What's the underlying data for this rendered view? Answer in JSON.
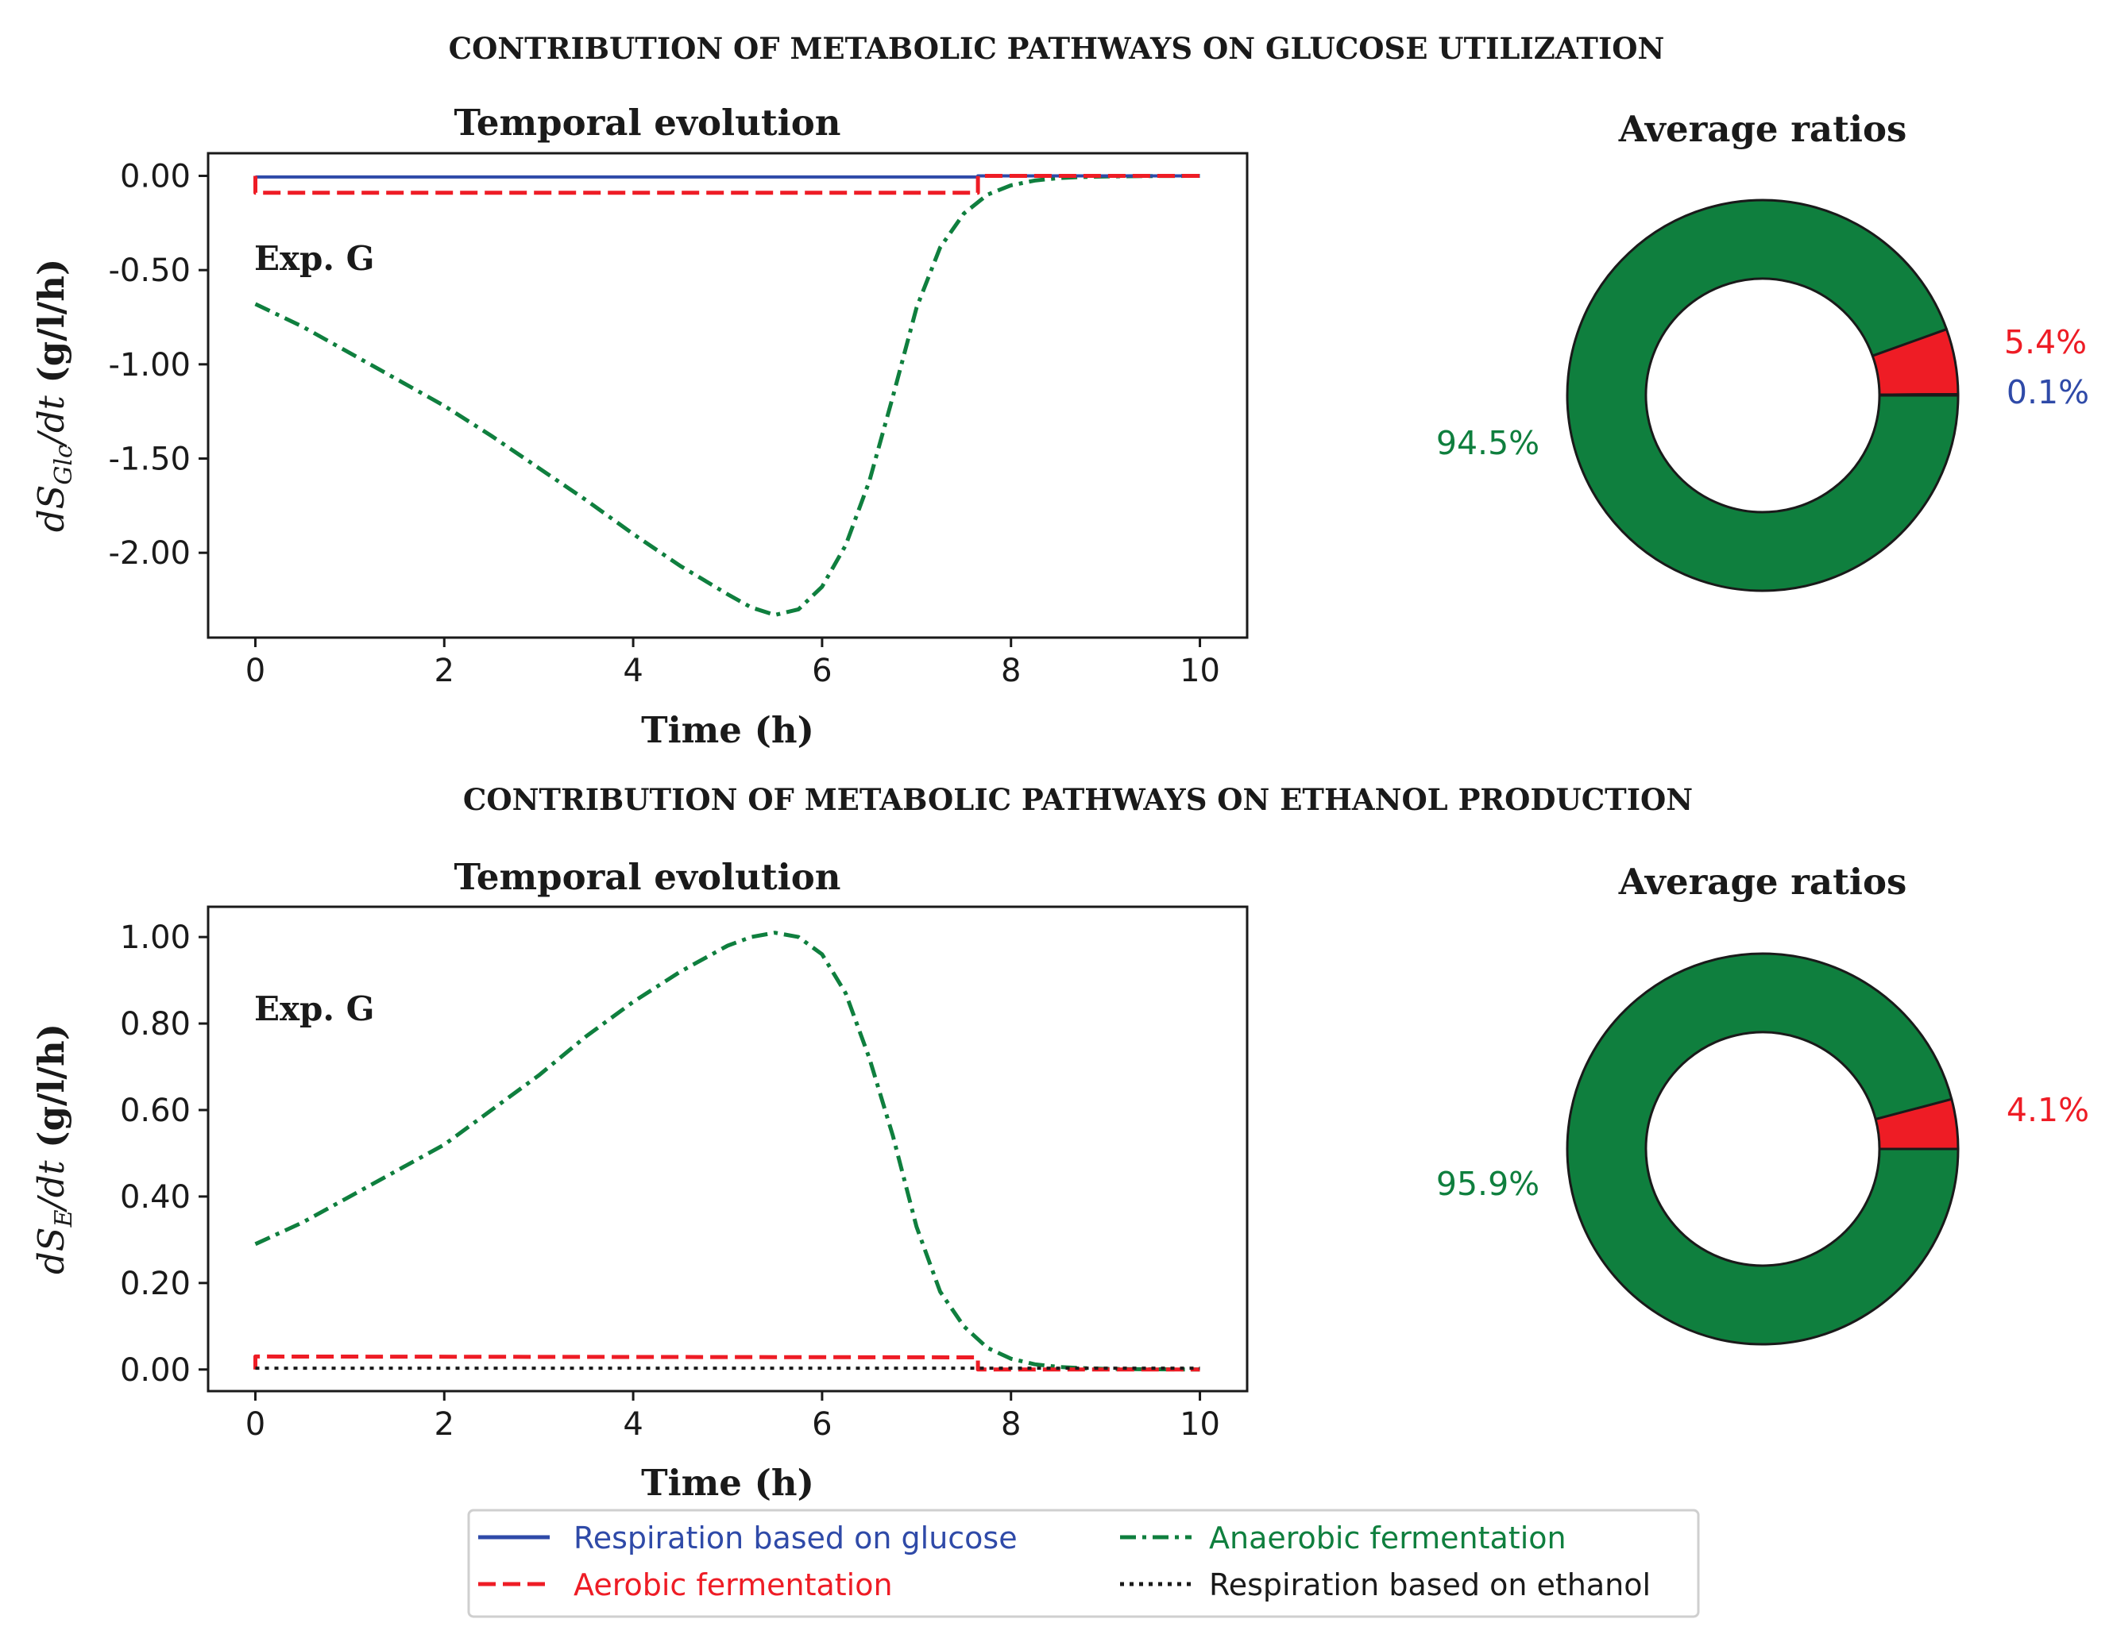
{
  "colors": {
    "respiration_glucose": "#2f4aa8",
    "aerobic_fermentation": "#ee1c25",
    "anaerobic_fermentation": "#0f7f3e",
    "respiration_ethanol": "#1a1a1a",
    "axis": "#1a1a1a"
  },
  "legend": {
    "items": [
      {
        "label": "Respiration based on glucose",
        "color": "#2f4aa8",
        "style": "solid"
      },
      {
        "label": "Aerobic fermentation",
        "color": "#ee1c25",
        "style": "dashed"
      },
      {
        "label": "Anaerobic fermentation",
        "color": "#0f7f3e",
        "style": "dashdot"
      },
      {
        "label": "Respiration based on ethanol",
        "color": "#1a1a1a",
        "style": "dotted"
      }
    ]
  },
  "chart_data": [
    {
      "type": "line",
      "suptitle": "CONTRIBUTION OF METABOLIC PATHWAYS ON GLUCOSE UTILIZATION",
      "title": "Temporal evolution",
      "annotation": "Exp. G",
      "xlabel": "Time (h)",
      "ylabel_prefix": "dS",
      "ylabel_subscript": "Glc",
      "ylabel_suffix": "/dt",
      "ylabel_units": " (g/l/h)",
      "xlim": [
        -0.5,
        10.5
      ],
      "ylim": [
        -2.45,
        0.12
      ],
      "xticks": [
        0,
        2,
        4,
        6,
        8,
        10
      ],
      "xtick_labels": [
        "0",
        "2",
        "4",
        "6",
        "8",
        "10"
      ],
      "yticks": [
        0,
        -0.5,
        -1,
        -1.5,
        -2
      ],
      "ytick_labels": [
        "0.00",
        "-0.50",
        "-1.00",
        "-1.50",
        "-2.00"
      ],
      "series": [
        {
          "name": "Respiration based on glucose",
          "x": [
            0,
            0,
            7.65,
            7.65,
            10
          ],
          "y": [
            0,
            -0.006,
            -0.006,
            0,
            0
          ]
        },
        {
          "name": "Aerobic fermentation",
          "x": [
            0,
            0,
            7.65,
            7.65,
            10
          ],
          "y": [
            0,
            -0.09,
            -0.09,
            0,
            0
          ]
        },
        {
          "name": "Anaerobic fermentation",
          "x": [
            0,
            0.5,
            1,
            1.5,
            2,
            2.5,
            3,
            3.5,
            4,
            4.5,
            5,
            5.25,
            5.5,
            5.75,
            6,
            6.25,
            6.5,
            6.75,
            7,
            7.25,
            7.5,
            7.75,
            8,
            8.25,
            8.5,
            8.75,
            9,
            9.5,
            10
          ],
          "y": [
            -0.68,
            -0.8,
            -0.94,
            -1.08,
            -1.22,
            -1.38,
            -1.55,
            -1.72,
            -1.9,
            -2.07,
            -2.22,
            -2.29,
            -2.33,
            -2.3,
            -2.18,
            -1.96,
            -1.62,
            -1.17,
            -0.7,
            -0.38,
            -0.2,
            -0.1,
            -0.05,
            -0.025,
            -0.012,
            -0.006,
            -0.003,
            -0.001,
            0
          ]
        },
        {
          "name": "Respiration based on ethanol",
          "x": [],
          "y": []
        }
      ]
    },
    {
      "type": "pie",
      "title": "Average ratios",
      "donut": true,
      "labels": [
        "Anaerobic fermentation",
        "Aerobic fermentation",
        "Respiration based on glucose"
      ],
      "values": [
        94.5,
        5.4,
        0.1
      ],
      "value_labels": [
        "94.5%",
        "5.4%",
        "0.1%"
      ],
      "colors": [
        "#0f7f3e",
        "#ee1c25",
        "#2f4aa8"
      ]
    },
    {
      "type": "line",
      "suptitle": "CONTRIBUTION OF METABOLIC PATHWAYS ON ETHANOL PRODUCTION",
      "title": "Temporal evolution",
      "annotation": "Exp. G",
      "xlabel": "Time (h)",
      "ylabel_prefix": "dS",
      "ylabel_subscript": "E",
      "ylabel_suffix": "/dt",
      "ylabel_units": " (g/l/h)",
      "xlim": [
        -0.5,
        10.5
      ],
      "ylim": [
        -0.05,
        1.07
      ],
      "xticks": [
        0,
        2,
        4,
        6,
        8,
        10
      ],
      "xtick_labels": [
        "0",
        "2",
        "4",
        "6",
        "8",
        "10"
      ],
      "yticks": [
        0,
        0.2,
        0.4,
        0.6,
        0.8,
        1.0
      ],
      "ytick_labels": [
        "0.00",
        "0.20",
        "0.40",
        "0.60",
        "0.80",
        "1.00"
      ],
      "series": [
        {
          "name": "Respiration based on glucose",
          "x": [],
          "y": []
        },
        {
          "name": "Aerobic fermentation",
          "x": [
            0,
            0,
            7.65,
            7.65,
            10
          ],
          "y": [
            0,
            0.03,
            0.028,
            0,
            0
          ]
        },
        {
          "name": "Anaerobic fermentation",
          "x": [
            0,
            0.5,
            1,
            1.5,
            2,
            2.5,
            3,
            3.5,
            4,
            4.5,
            5,
            5.25,
            5.5,
            5.75,
            6,
            6.25,
            6.5,
            6.75,
            7,
            7.25,
            7.5,
            7.75,
            8,
            8.25,
            8.5,
            8.75,
            9,
            9.5,
            10
          ],
          "y": [
            0.29,
            0.34,
            0.4,
            0.46,
            0.52,
            0.6,
            0.68,
            0.77,
            0.85,
            0.92,
            0.98,
            1.0,
            1.01,
            1.0,
            0.96,
            0.87,
            0.72,
            0.54,
            0.33,
            0.18,
            0.1,
            0.05,
            0.025,
            0.012,
            0.006,
            0.003,
            0.0015,
            0.0005,
            0
          ]
        },
        {
          "name": "Respiration based on ethanol",
          "x": [
            0,
            10
          ],
          "y": [
            0.003,
            0.003
          ]
        }
      ]
    },
    {
      "type": "pie",
      "title": "Average ratios",
      "donut": true,
      "labels": [
        "Anaerobic fermentation",
        "Aerobic fermentation"
      ],
      "values": [
        95.9,
        4.1
      ],
      "value_labels": [
        "95.9%",
        "4.1%"
      ],
      "colors": [
        "#0f7f3e",
        "#ee1c25"
      ]
    }
  ]
}
